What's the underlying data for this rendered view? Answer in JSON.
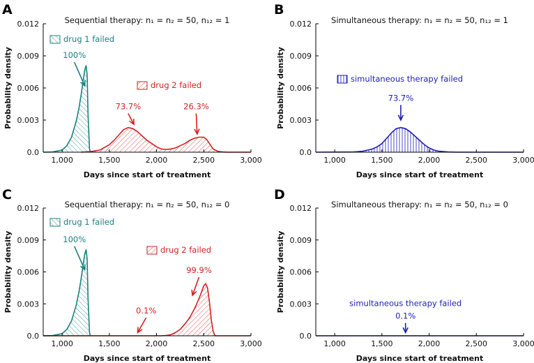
{
  "colors": {
    "drug1": "#1a8080",
    "drug2": "#d42020",
    "simultaneous": "#1f1fb0",
    "axis": "#000000"
  },
  "chart_data": [
    {
      "panel": "A",
      "type": "area",
      "title_prefix": "Sequential therapy:",
      "title_params": "n₁ = n₂ = 50,  n₁₂ = 1",
      "xlabel": "Days since start of treatment",
      "ylabel": "Probability density",
      "xlim": [
        800,
        3000
      ],
      "ylim": [
        0,
        0.012
      ],
      "xticks": [
        1000,
        1500,
        2000,
        2500,
        3000
      ],
      "xtick_labels": [
        "1,000",
        "1,500",
        "2,000",
        "2,500",
        "3,000"
      ],
      "yticks": [
        0,
        0.003,
        0.006,
        0.009,
        0.012
      ],
      "ytick_labels": [
        "0.0",
        "0.003",
        "0.006",
        "0.009",
        "0.012"
      ],
      "series": [
        {
          "name": "drug 1 failed",
          "color_key": "drug1",
          "hatch": "diag-down",
          "legend": true,
          "x": [
            800,
            900,
            1000,
            1050,
            1100,
            1150,
            1180,
            1200,
            1220,
            1240,
            1255,
            1265,
            1275,
            1290,
            1300
          ],
          "y": [
            0,
            2e-05,
            0.0002,
            0.0006,
            0.0014,
            0.0029,
            0.0042,
            0.0053,
            0.0065,
            0.0077,
            0.0081,
            0.0072,
            0.0035,
            0.0003,
            0
          ]
        },
        {
          "name": "drug 2 failed",
          "color_key": "drug2",
          "hatch": "diag-up",
          "legend": true,
          "x": [
            1200,
            1300,
            1400,
            1500,
            1550,
            1600,
            1650,
            1700,
            1750,
            1800,
            1850,
            1900,
            1950,
            2000,
            2050,
            2100,
            2150,
            2200,
            2250,
            2300,
            2350,
            2400,
            2450,
            2500,
            2530,
            2560,
            2600,
            2650,
            2700,
            2750,
            3000
          ],
          "y": [
            0,
            5e-05,
            0.0002,
            0.0007,
            0.0011,
            0.0016,
            0.0021,
            0.0023,
            0.0022,
            0.0019,
            0.0015,
            0.0011,
            0.0008,
            0.0005,
            0.0003,
            0.00025,
            0.0003,
            0.0004,
            0.0006,
            0.0008,
            0.0011,
            0.0013,
            0.0014,
            0.0014,
            0.0012,
            0.0008,
            0.0003,
            8e-05,
            2e-05,
            0,
            0
          ]
        }
      ],
      "legend_entries": [
        "drug 1 failed",
        "drug 2 failed"
      ],
      "annotations": [
        {
          "text": "100%",
          "color_key": "drug1",
          "x": 1130,
          "y": 0.0088,
          "arrow_to": [
            1240,
            0.0062
          ]
        },
        {
          "text": "73.7%",
          "color_key": "drug2",
          "x": 1700,
          "y": 0.004,
          "arrow_to": [
            1760,
            0.0026
          ]
        },
        {
          "text": "26.3%",
          "color_key": "drug2",
          "x": 2420,
          "y": 0.004,
          "arrow_to": [
            2430,
            0.0017
          ]
        }
      ]
    },
    {
      "panel": "B",
      "type": "area",
      "title_prefix": "Simultaneous therapy:",
      "title_params": "n₁ = n₂ = 50,  n₁₂ = 1",
      "xlabel": "Days since start of treatment",
      "ylabel": "Probability density",
      "xlim": [
        800,
        3000
      ],
      "ylim": [
        0,
        0.012
      ],
      "xticks": [
        1000,
        1500,
        2000,
        2500,
        3000
      ],
      "xtick_labels": [
        "1,000",
        "1,500",
        "2,000",
        "2,500",
        "3,000"
      ],
      "yticks": [
        0,
        0.003,
        0.006,
        0.009,
        0.012
      ],
      "ytick_labels": [
        "0.0",
        "0.003",
        "0.006",
        "0.009",
        "0.012"
      ],
      "series": [
        {
          "name": "simultaneous therapy failed",
          "color_key": "simultaneous",
          "hatch": "vertical",
          "legend": true,
          "x": [
            800,
            1200,
            1300,
            1400,
            1450,
            1500,
            1550,
            1600,
            1650,
            1700,
            1750,
            1800,
            1850,
            1900,
            1950,
            2000,
            2050,
            2100,
            2200,
            2300,
            3000
          ],
          "y": [
            0,
            2e-05,
            0.0001,
            0.0003,
            0.0005,
            0.0008,
            0.0013,
            0.0018,
            0.0022,
            0.0023,
            0.0022,
            0.0019,
            0.0015,
            0.0011,
            0.0007,
            0.0004,
            0.0002,
            0.0001,
            2e-05,
            0,
            0
          ]
        }
      ],
      "legend_entries": [
        "simultaneous therapy failed"
      ],
      "annotations": [
        {
          "text": "73.7%",
          "color_key": "simultaneous",
          "x": 1700,
          "y": 0.0048,
          "arrow_to": [
            1700,
            0.003
          ]
        }
      ]
    },
    {
      "panel": "C",
      "type": "area",
      "title_prefix": "Sequential therapy:",
      "title_params": "n₁ = n₂ = 50,  n₁₂ = 0",
      "xlabel": "Days since start of treatment",
      "ylabel": "Probability density",
      "xlim": [
        800,
        3000
      ],
      "ylim": [
        0,
        0.012
      ],
      "xticks": [
        1000,
        1500,
        2000,
        2500,
        3000
      ],
      "xtick_labels": [
        "1,000",
        "1,500",
        "2,000",
        "2,500",
        "3,000"
      ],
      "yticks": [
        0,
        0.003,
        0.006,
        0.009,
        0.012
      ],
      "ytick_labels": [
        "0.0",
        "0.003",
        "0.006",
        "0.009",
        "0.012"
      ],
      "series": [
        {
          "name": "drug 1 failed",
          "color_key": "drug1",
          "hatch": "diag-down",
          "legend": true,
          "x": [
            800,
            900,
            1000,
            1050,
            1100,
            1150,
            1180,
            1200,
            1220,
            1240,
            1255,
            1265,
            1275,
            1290,
            1300
          ],
          "y": [
            0,
            2e-05,
            0.0002,
            0.0006,
            0.0014,
            0.0029,
            0.0042,
            0.0053,
            0.0065,
            0.0077,
            0.0081,
            0.0072,
            0.0035,
            0.0003,
            0
          ]
        },
        {
          "name": "drug 2 failed",
          "color_key": "drug2",
          "hatch": "diag-up",
          "legend": true,
          "x": [
            800,
            2050,
            2100,
            2150,
            2200,
            2250,
            2300,
            2350,
            2400,
            2450,
            2480,
            2500,
            2520,
            2540,
            2560,
            2580,
            2600,
            2620,
            3000
          ],
          "y": [
            0,
            0,
            3e-05,
            0.0001,
            0.0003,
            0.0006,
            0.0011,
            0.0017,
            0.0025,
            0.0035,
            0.0042,
            0.0047,
            0.0049,
            0.0045,
            0.0032,
            0.0015,
            0.0004,
            0,
            0
          ]
        }
      ],
      "legend_entries": [
        "drug 1 failed",
        "drug 2 failed"
      ],
      "annotations": [
        {
          "text": "100%",
          "color_key": "drug1",
          "x": 1130,
          "y": 0.0088,
          "arrow_to": [
            1240,
            0.0062
          ]
        },
        {
          "text": "0.1%",
          "color_key": "drug2",
          "x": 1890,
          "y": 0.0021,
          "arrow_to": [
            1800,
            0.0003
          ]
        },
        {
          "text": "99.9%",
          "color_key": "drug2",
          "x": 2450,
          "y": 0.0059,
          "arrow_to": [
            2380,
            0.0038
          ]
        }
      ]
    },
    {
      "panel": "D",
      "type": "area",
      "title_prefix": "Simultaneous therapy:",
      "title_params": "n₁ = n₂ = 50,  n₁₂ = 0",
      "xlabel": "Days since start of treatment",
      "ylabel": "Probability density",
      "xlim": [
        800,
        3000
      ],
      "ylim": [
        0,
        0.012
      ],
      "xticks": [
        1000,
        1500,
        2000,
        2500,
        3000
      ],
      "xtick_labels": [
        "1,000",
        "1,500",
        "2,000",
        "2,500",
        "3,000"
      ],
      "yticks": [
        0,
        0.003,
        0.006,
        0.009,
        0.012
      ],
      "ytick_labels": [
        "0.0",
        "0.003",
        "0.006",
        "0.009",
        "0.012"
      ],
      "series": [
        {
          "name": "simultaneous therapy failed",
          "color_key": "simultaneous",
          "hatch": "none",
          "legend": false,
          "x": [
            800,
            3000
          ],
          "y": [
            0,
            0
          ]
        }
      ],
      "legend_entries": [],
      "annotations": [
        {
          "text": "simultaneous therapy failed",
          "color_key": "simultaneous",
          "x": 1750,
          "y": 0.0028,
          "arrow_to": null
        },
        {
          "text": "0.1%",
          "color_key": "simultaneous",
          "x": 1750,
          "y": 0.0016,
          "arrow_to": [
            1750,
            0.0003
          ]
        }
      ]
    }
  ]
}
